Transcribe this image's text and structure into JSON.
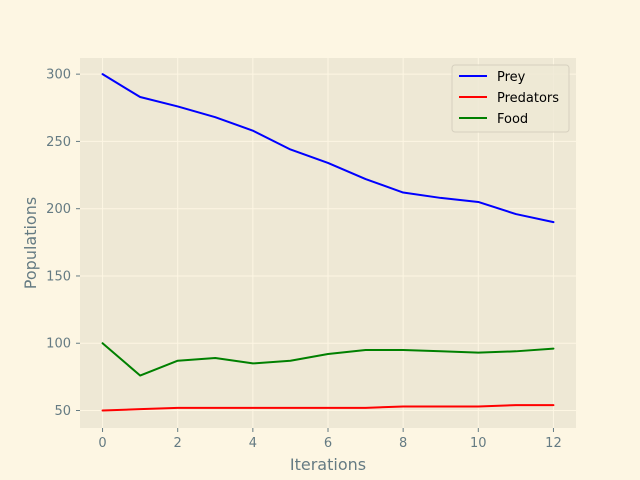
{
  "chart_data": {
    "type": "line",
    "title": "",
    "xlabel": "Iterations",
    "ylabel": "Populations",
    "xlim": [
      -0.6,
      12.6
    ],
    "ylim": [
      37,
      312
    ],
    "xticks": [
      0,
      2,
      4,
      6,
      8,
      10,
      12
    ],
    "yticks": [
      50,
      100,
      150,
      200,
      250,
      300
    ],
    "grid": true,
    "legend_position": "top-right",
    "x": [
      0,
      1,
      2,
      3,
      4,
      5,
      6,
      7,
      8,
      9,
      10,
      11,
      12
    ],
    "series": [
      {
        "name": "Prey",
        "color": "#0000ff",
        "values": [
          300,
          283,
          276,
          268,
          258,
          244,
          234,
          222,
          212,
          208,
          205,
          196,
          190
        ]
      },
      {
        "name": "Predators",
        "color": "#ff0000",
        "values": [
          50,
          51,
          52,
          52,
          52,
          52,
          52,
          52,
          53,
          53,
          53,
          54,
          54
        ]
      },
      {
        "name": "Food",
        "color": "#008000",
        "values": [
          100,
          76,
          87,
          89,
          85,
          87,
          92,
          95,
          95,
          94,
          93,
          94,
          96
        ]
      }
    ],
    "colors": {
      "figure_background": "#fdf6e3",
      "plot_background": "#eee8d5",
      "grid": "#fdf6e3",
      "text": "#657b83"
    }
  }
}
